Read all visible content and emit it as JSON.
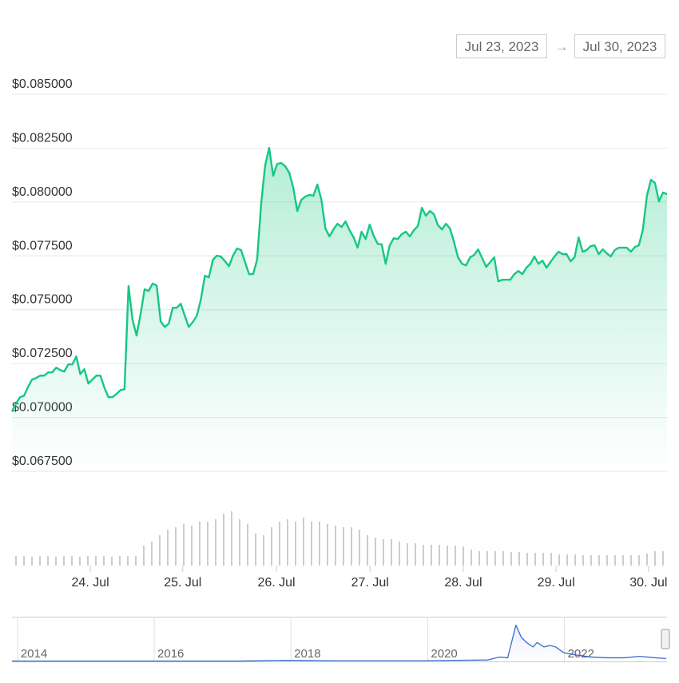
{
  "range_selector": {
    "start": "Jul 23, 2023",
    "separator": "→",
    "end": "Jul 30, 2023"
  },
  "chart_data": [
    {
      "type": "area",
      "color": "#16c784",
      "grid": true,
      "xlim": [
        0,
        163
      ],
      "xticks": [
        {
          "value": 19.5,
          "label": "24. Jul"
        },
        {
          "value": 42.5,
          "label": "25. Jul"
        },
        {
          "value": 65.8,
          "label": "26. Jul"
        },
        {
          "value": 89.1,
          "label": "27. Jul"
        },
        {
          "value": 112.3,
          "label": "28. Jul"
        },
        {
          "value": 135.4,
          "label": "29. Jul"
        },
        {
          "value": 158.4,
          "label": "30. Jul"
        }
      ],
      "ylim": [
        0.0675,
        0.085
      ],
      "yticks": [
        {
          "value": 0.085,
          "label": "$0.085000"
        },
        {
          "value": 0.0825,
          "label": "$0.082500"
        },
        {
          "value": 0.08,
          "label": "$0.080000"
        },
        {
          "value": 0.0775,
          "label": "$0.077500"
        },
        {
          "value": 0.075,
          "label": "$0.075000"
        },
        {
          "value": 0.0725,
          "label": "$0.072500"
        },
        {
          "value": 0.07,
          "label": "$0.070000"
        },
        {
          "value": 0.0675,
          "label": "$0.067500"
        }
      ],
      "values": [
        0.07027,
        0.07064,
        0.07094,
        0.07101,
        0.07142,
        0.07176,
        0.07183,
        0.07194,
        0.07194,
        0.07209,
        0.07209,
        0.07231,
        0.0722,
        0.07213,
        0.07246,
        0.07246,
        0.07283,
        0.07201,
        0.07224,
        0.07157,
        0.07176,
        0.07194,
        0.07194,
        0.07138,
        0.07094,
        0.07094,
        0.07109,
        0.07127,
        0.07131,
        0.0761,
        0.07454,
        0.0738,
        0.0748,
        0.07595,
        0.07587,
        0.07621,
        0.07613,
        0.07446,
        0.0742,
        0.07435,
        0.07509,
        0.07509,
        0.07528,
        0.07472,
        0.0742,
        0.07443,
        0.07472,
        0.07547,
        0.07658,
        0.0765,
        0.07732,
        0.07751,
        0.07747,
        0.07725,
        0.07702,
        0.07751,
        0.07784,
        0.07777,
        0.07721,
        0.07665,
        0.07665,
        0.07732,
        0.07992,
        0.0817,
        0.08251,
        0.08122,
        0.08177,
        0.08181,
        0.08166,
        0.08136,
        0.08066,
        0.07958,
        0.0801,
        0.08025,
        0.08033,
        0.08029,
        0.08081,
        0.0801,
        0.07877,
        0.0784,
        0.07873,
        0.07899,
        0.07884,
        0.0791,
        0.07869,
        0.07836,
        0.07788,
        0.07862,
        0.07828,
        0.07895,
        0.07843,
        0.07806,
        0.07803,
        0.07713,
        0.07799,
        0.07832,
        0.07828,
        0.07851,
        0.07862,
        0.0784,
        0.07869,
        0.07888,
        0.07973,
        0.07936,
        0.07958,
        0.07943,
        0.07892,
        0.07873,
        0.07899,
        0.07877,
        0.07814,
        0.07743,
        0.07713,
        0.07706,
        0.07743,
        0.07754,
        0.0778,
        0.07739,
        0.07699,
        0.07721,
        0.07743,
        0.07632,
        0.07639,
        0.07639,
        0.07639,
        0.07665,
        0.0768,
        0.07665,
        0.07695,
        0.07713,
        0.07747,
        0.07713,
        0.07728,
        0.07695,
        0.07721,
        0.07747,
        0.07769,
        0.07758,
        0.07758,
        0.07725,
        0.07743,
        0.07836,
        0.07769,
        0.07777,
        0.07795,
        0.07799,
        0.07758,
        0.0778,
        0.07762,
        0.07747,
        0.07777,
        0.07788,
        0.07788,
        0.07788,
        0.07769,
        0.07791,
        0.07799,
        0.07873,
        0.08029,
        0.08103,
        0.08088,
        0.08003,
        0.08044,
        0.08036
      ]
    },
    {
      "type": "bar",
      "color": "#cccccc",
      "ylim": [
        0,
        70
      ],
      "values": [
        12,
        12,
        11,
        12,
        12,
        11,
        12,
        12,
        11,
        12,
        12,
        12,
        11,
        12,
        12,
        12,
        25,
        30,
        38,
        45,
        48,
        52,
        50,
        55,
        55,
        58,
        65,
        68,
        58,
        52,
        40,
        38,
        48,
        55,
        58,
        55,
        60,
        55,
        55,
        52,
        50,
        48,
        48,
        45,
        38,
        35,
        33,
        33,
        30,
        28,
        28,
        26,
        26,
        26,
        25,
        25,
        24,
        20,
        18,
        18,
        18,
        18,
        17,
        17,
        16,
        16,
        16,
        16,
        14,
        14,
        14,
        13,
        13,
        13,
        13,
        13,
        13,
        13,
        13,
        15,
        18,
        18
      ]
    },
    {
      "type": "area",
      "color": "#3b6cc9",
      "grid": true,
      "xlim": [
        2013.92,
        2023.5
      ],
      "ylim": [
        0,
        55
      ],
      "xticks": [
        2014,
        2016,
        2018,
        2020,
        2022
      ],
      "x": [
        2013.92,
        2017.25,
        2017.9,
        2018.65,
        2019.94,
        2020.88,
        2021.05,
        2021.17,
        2021.29,
        2021.37,
        2021.46,
        2021.54,
        2021.6,
        2021.7,
        2021.79,
        2021.87,
        2021.99,
        2022.16,
        2022.4,
        2022.63,
        2022.87,
        2023.1,
        2023.33,
        2023.49
      ],
      "values": [
        0.5,
        0.5,
        1.5,
        1,
        1,
        2,
        6,
        5,
        50,
        33,
        25,
        20,
        26,
        20,
        22,
        20,
        12,
        9,
        6,
        5,
        5,
        7,
        5,
        4
      ]
    }
  ]
}
